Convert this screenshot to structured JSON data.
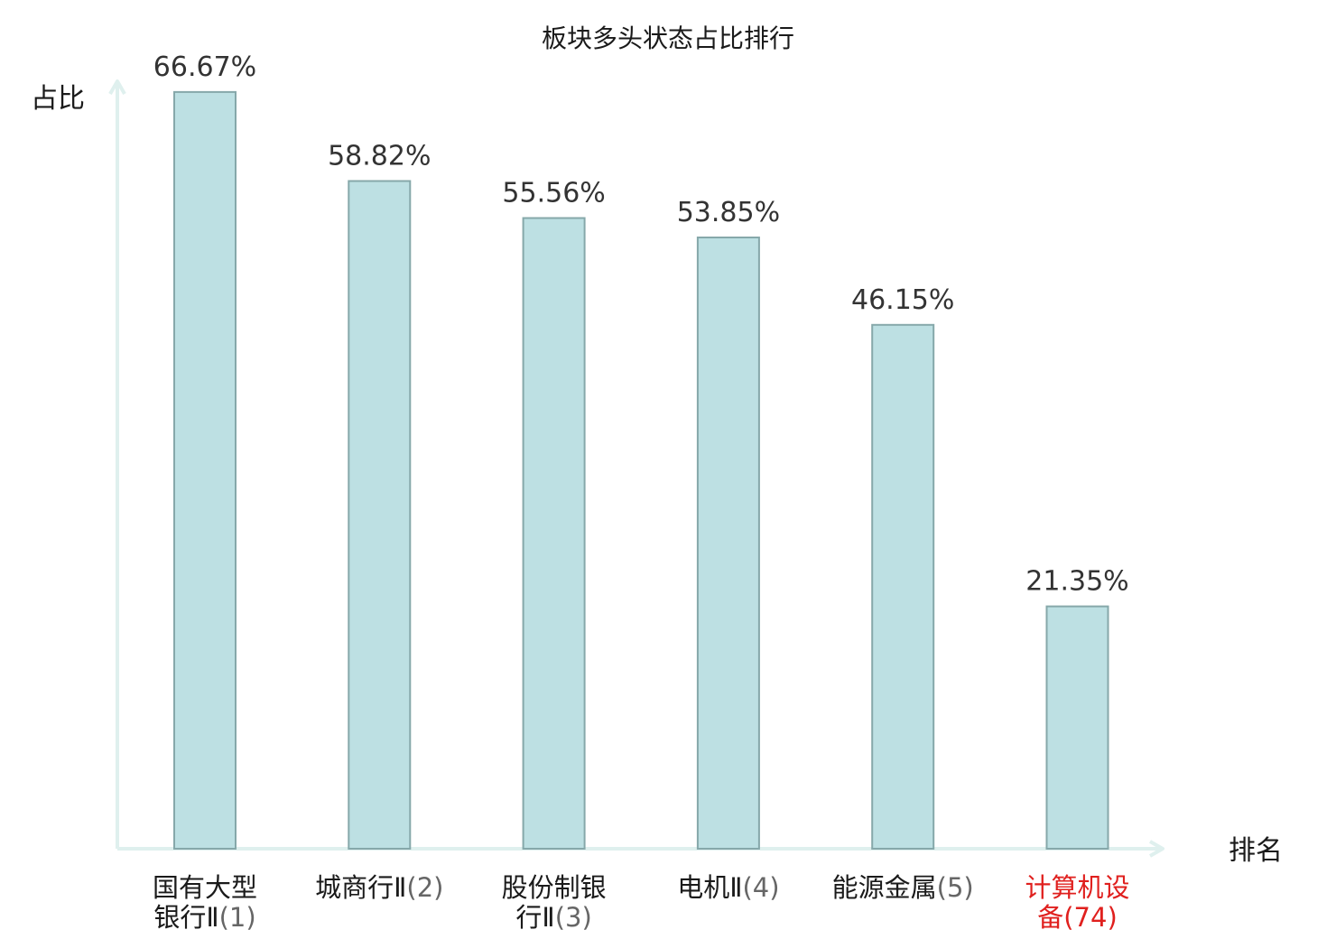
{
  "chart_data": {
    "type": "bar",
    "title": "板块多头状态占比排行",
    "ylabel": "占比",
    "xlabel": "排名",
    "ylim": [
      0,
      70
    ],
    "grid": false,
    "legend": "none",
    "value_suffix": "%",
    "categories": [
      {
        "lines": [
          {
            "name": "国有大型",
            "rank": ""
          },
          {
            "name": "银行Ⅱ",
            "rank": "(1)"
          }
        ],
        "highlight": false
      },
      {
        "lines": [
          {
            "name": "城商行Ⅱ",
            "rank": "(2)"
          }
        ],
        "highlight": false
      },
      {
        "lines": [
          {
            "name": "股份制银",
            "rank": ""
          },
          {
            "name": "行Ⅱ",
            "rank": "(3)"
          }
        ],
        "highlight": false
      },
      {
        "lines": [
          {
            "name": "电机Ⅱ",
            "rank": "(4)"
          }
        ],
        "highlight": false
      },
      {
        "lines": [
          {
            "name": "能源金属",
            "rank": "(5)"
          }
        ],
        "highlight": false
      },
      {
        "lines": [
          {
            "name": "计算机设",
            "rank": ""
          },
          {
            "name": "备",
            "rank": "(74)"
          }
        ],
        "highlight": true
      }
    ],
    "values": [
      66.67,
      58.82,
      55.56,
      53.85,
      46.15,
      21.35
    ],
    "colors": {
      "bar_fill": "#bde0e3",
      "bar_stroke": "#86a8aa",
      "axis": "#dff0ee",
      "label": "#1a1a1a",
      "highlight": "#e0201e"
    }
  }
}
